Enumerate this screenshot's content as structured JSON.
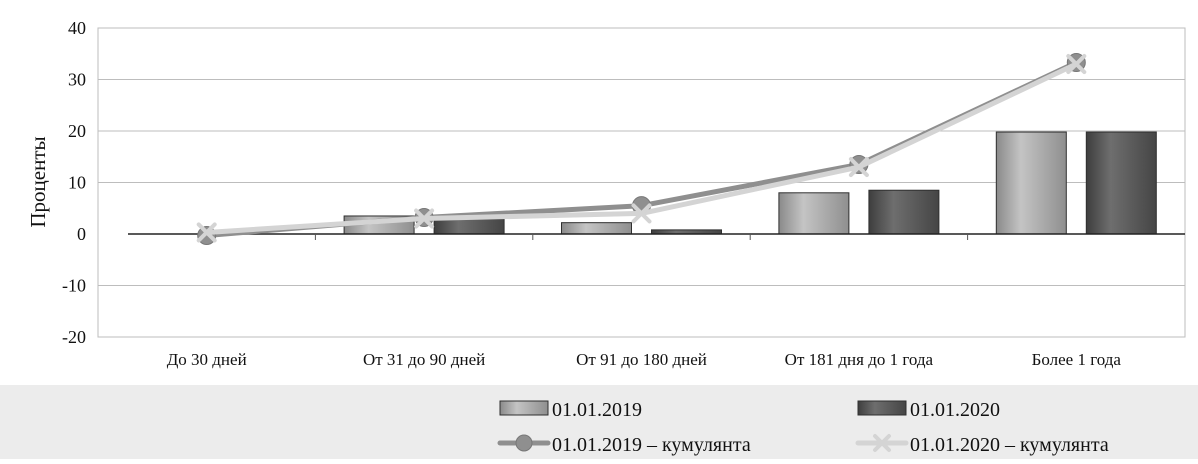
{
  "chart_data": {
    "type": "bar",
    "categories": [
      "До 30 дней",
      "От 31 до 90  дней",
      "От 91 до 180  дней",
      "От 181 дня до 1 года",
      "Более 1 года"
    ],
    "series": [
      {
        "name": "01.01.2019",
        "kind": "bar",
        "color": "#a6a6a6",
        "values": [
          0,
          3.5,
          2.2,
          8.0,
          19.8
        ]
      },
      {
        "name": "01.01.2020",
        "kind": "bar",
        "color": "#555555",
        "values": [
          0,
          3.0,
          0.8,
          8.5,
          19.8
        ]
      },
      {
        "name": "01.01.2019 – кумулянта",
        "kind": "line",
        "marker": "circle",
        "color": "#8f8f8f",
        "values": [
          -0.3,
          3.2,
          5.5,
          13.5,
          33.3
        ]
      },
      {
        "name": "01.01.2020 – кумулянта",
        "kind": "line",
        "marker": "cross",
        "color": "#d4d4d4",
        "values": [
          0.3,
          3.0,
          4.0,
          13.0,
          33.0
        ]
      }
    ],
    "xlabel": "",
    "ylabel": "Проценты",
    "ylim": [
      -20,
      40
    ],
    "yticks": [
      -20,
      -10,
      0,
      10,
      20,
      30,
      40
    ],
    "grid": true,
    "legend_position": "bottom"
  }
}
